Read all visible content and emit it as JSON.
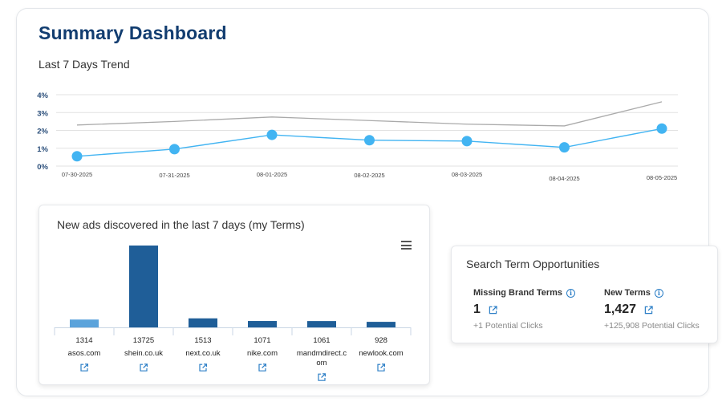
{
  "header": {
    "title": "Summary Dashboard"
  },
  "trend": {
    "title": "Last 7 Days Trend",
    "chart_data": {
      "type": "line",
      "categories": [
        "07-30-2025",
        "07-31-2025",
        "08-01-2025",
        "08-02-2025",
        "08-03-2025",
        "08-04-2025",
        "08-05-2025"
      ],
      "y_ticks": [
        "4%",
        "3%",
        "2%",
        "1%",
        "0%"
      ],
      "ylim": [
        0,
        4
      ],
      "grid": true,
      "series": [
        {
          "values": [
            2.3,
            2.5,
            2.75,
            2.55,
            2.35,
            2.25,
            3.6
          ],
          "color": "#aaaaaa",
          "markers": false
        },
        {
          "values": [
            0.55,
            0.95,
            1.75,
            1.45,
            1.4,
            1.05,
            2.1
          ],
          "color": "#42b4f2",
          "markers": true
        }
      ]
    }
  },
  "ads": {
    "title": "New ads discovered in the last 7 days (my Terms)",
    "chart_data": {
      "type": "bar",
      "categories": [
        "asos.com",
        "shein.co.uk",
        "next.co.uk",
        "nike.com",
        "mandmdirect.com",
        "newlook.com"
      ],
      "category_lines": [
        [
          "asos.com"
        ],
        [
          "shein.co.uk"
        ],
        [
          "next.co.uk"
        ],
        [
          "nike.com"
        ],
        [
          "mandmdirect.c",
          "om"
        ],
        [
          "newlook.com"
        ]
      ],
      "values": [
        1314,
        13725,
        1513,
        1071,
        1061,
        928
      ],
      "value_labels": [
        "1314",
        "13725",
        "1513",
        "1071",
        "1061",
        "928"
      ],
      "bar_colors": [
        "#5ba3db",
        "#1f5e98",
        "#1f5e98",
        "#1f5e98",
        "#1f5e98",
        "#1f5e98"
      ],
      "ylim": [
        0,
        13725
      ]
    }
  },
  "opportunities": {
    "title": "Search Term Opportunities",
    "missing": {
      "label": "Missing Brand Terms",
      "value": "1",
      "sub": "+1 Potential Clicks"
    },
    "new_terms": {
      "label": "New Terms",
      "value": "1,427",
      "sub": "+125,908 Potential Clicks"
    }
  }
}
